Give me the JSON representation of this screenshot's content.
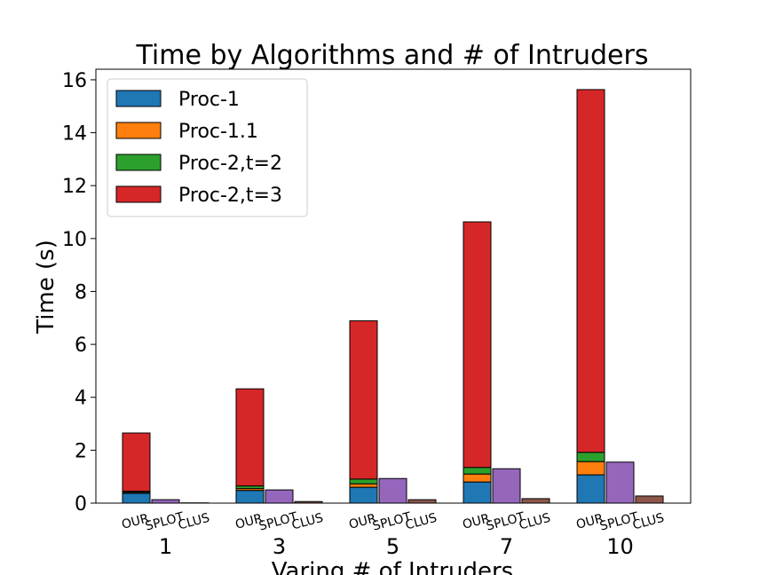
{
  "chart_data": {
    "type": "bar",
    "stacked": true,
    "title": "Time by Algorithms and # of Intruders",
    "xlabel": "Varing # of Intruders",
    "ylabel": "Time (s)",
    "ylim": [
      0,
      16.4
    ],
    "yticks": [
      0,
      2,
      4,
      6,
      8,
      10,
      12,
      14,
      16
    ],
    "grid": false,
    "legend_position": "top-left",
    "groups": [
      "1",
      "3",
      "5",
      "7",
      "10"
    ],
    "bar_labels": [
      "OUR",
      "SPLOT",
      "CLUS"
    ],
    "our_series": [
      {
        "name": "Proc-1",
        "color": "#1f77b4",
        "values": [
          0.37,
          0.48,
          0.6,
          0.8,
          1.07
        ]
      },
      {
        "name": "Proc-1.1",
        "color": "#ff7f0e",
        "values": [
          0.04,
          0.07,
          0.13,
          0.3,
          0.5
        ]
      },
      {
        "name": "Proc-2,t=2",
        "color": "#2ca02c",
        "values": [
          0.04,
          0.1,
          0.18,
          0.25,
          0.35
        ]
      },
      {
        "name": "Proc-2,t=3",
        "color": "#d62728",
        "values": [
          2.2,
          3.67,
          5.98,
          9.28,
          13.71
        ]
      }
    ],
    "splot": {
      "color": "#9467bd",
      "values": [
        0.13,
        0.5,
        0.93,
        1.3,
        1.55
      ]
    },
    "clus": {
      "color": "#8c564b",
      "values": [
        0.01,
        0.06,
        0.13,
        0.17,
        0.27
      ]
    }
  }
}
